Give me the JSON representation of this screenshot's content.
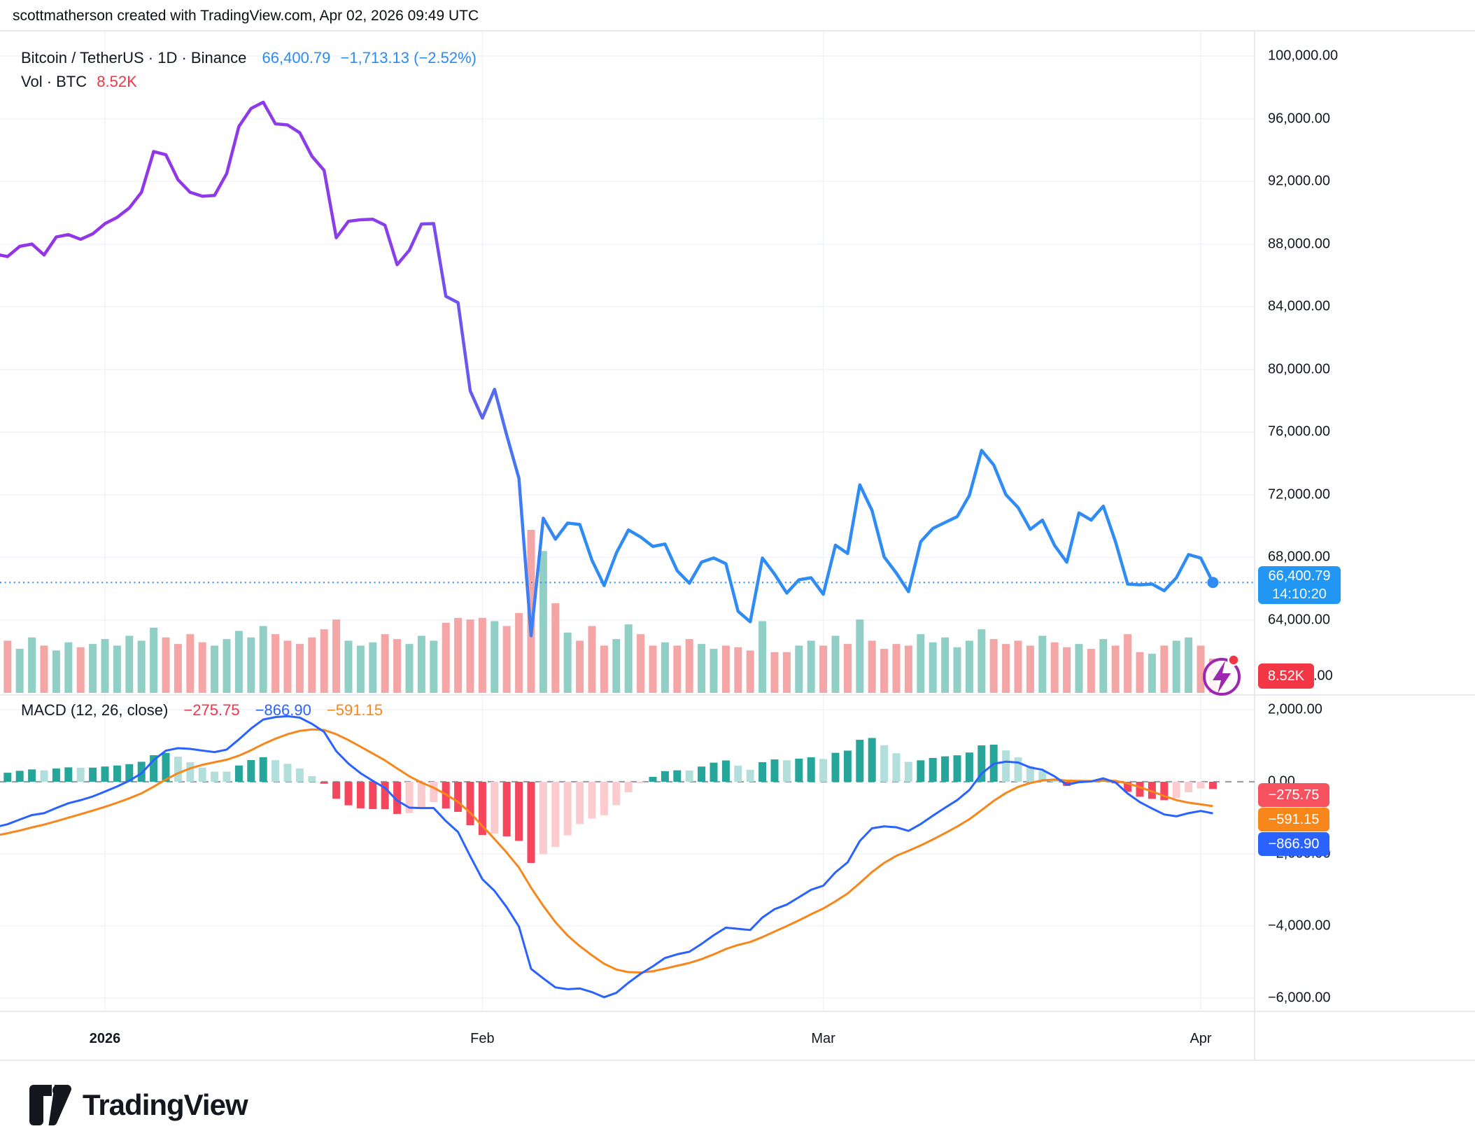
{
  "header": {
    "attribution": "scottmatherson created with TradingView.com, Apr 02, 2026 09:49 UTC"
  },
  "symbol_legend": {
    "title": "Bitcoin / TetherUS · 1D · Binance",
    "price": "66,400.79",
    "change": "−1,713.13 (−2.52%)"
  },
  "volume_legend": {
    "label": "Vol · BTC",
    "value": "8.52K"
  },
  "macd_legend": {
    "label": "MACD (12, 26, close)",
    "hist": "−275.75",
    "macd": "−866.90",
    "signal": "−591.15"
  },
  "price_chip": {
    "price": "66,400.79",
    "time": "14:10:20"
  },
  "volume_chip": {
    "value": "8.52K"
  },
  "macd_chips": {
    "hist": "−275.75",
    "signal": "−591.15",
    "macd": "−866.90"
  },
  "axis": {
    "price_labels": [
      "100,000.00",
      "96,000.00",
      "92,000.00",
      "88,000.00",
      "84,000.00",
      "80,000.00",
      "76,000.00",
      "72,000.00",
      "68,000.00",
      "64,000.00"
    ],
    "price_values": [
      100000,
      96000,
      92000,
      88000,
      84000,
      80000,
      76000,
      72000,
      68000,
      64000
    ],
    "macd_labels": [
      "2,000.00",
      "0.00",
      "−2,000.00",
      "−4,000.00",
      "−6,000.00"
    ],
    "macd_values": [
      2000,
      0,
      -2000,
      -4000,
      -6000
    ],
    "volume_axis_peek": ".00",
    "time_labels": [
      "2026",
      "Feb",
      "Mar",
      "Apr"
    ]
  },
  "logo": {
    "text": "TradingView"
  },
  "colors": {
    "line_purple": "#9632e7",
    "line_blue": "#2f8cf5",
    "chip_blue": "#2196f3",
    "red": "#f23645",
    "vol_up": "#90cfc6",
    "vol_down": "#f4a6a6",
    "macd_pos_strong": "#26a69a",
    "macd_pos_weak": "#b2dfdb",
    "macd_neg_strong": "#f6465d",
    "macd_neg_weak": "#fccbcd",
    "macd_line": "#2962ff",
    "signal_line": "#f7861b",
    "grid": "#f0f3fa",
    "border": "#e0e3eb",
    "zero_dash": "#9b9ea6",
    "icon_purple": "#9c27b0"
  },
  "chart_data": {
    "type": "line",
    "description": "BTC/USDT 1D close line with volume and MACD(12,26,9) panel; daily points from late Dec 2025 through Apr 2 2026",
    "days_before_jan1": 9,
    "last_price": 66400.79,
    "last_time": "14:10:20",
    "price_ylim": [
      62000,
      101500
    ],
    "macd_ylim": [
      -6500,
      2300
    ],
    "macd_current": {
      "hist": -275.75,
      "macd": -866.9,
      "signal": -591.15
    },
    "volume_current_label": "8.52K",
    "price": {
      "values": [
        87350,
        87200,
        87850,
        88000,
        87300,
        88450,
        88600,
        88300,
        88650,
        89300,
        89700,
        90300,
        91300,
        93900,
        93700,
        92100,
        91300,
        91050,
        91100,
        92500,
        95500,
        96650,
        97050,
        95670,
        95600,
        95100,
        93600,
        92700,
        88400,
        89450,
        89550,
        89580,
        89200,
        86680,
        87600,
        89280,
        89300,
        84660,
        84260,
        78630,
        76890,
        78725,
        75800,
        73050,
        63000,
        70500,
        69160,
        70190,
        70100,
        67820,
        66200,
        68270,
        69750,
        69300,
        68700,
        68850,
        67150,
        66350,
        67700,
        67960,
        67600,
        64560,
        63890,
        67960,
        66930,
        65720,
        66570,
        66700,
        65650,
        68780,
        68250,
        72630,
        71000,
        68030,
        67000,
        65810,
        69000,
        69850,
        70230,
        70600,
        71960,
        74830,
        73900,
        72000,
        71180,
        69790,
        70380,
        68760,
        67690,
        70840,
        70380,
        71270,
        69000,
        66300,
        66250,
        66300,
        65870,
        66700,
        68180,
        67960,
        66400.79
      ]
    },
    "volume_rel": [
      0.3,
      0.32,
      0.27,
      0.34,
      0.29,
      0.26,
      0.31,
      0.28,
      0.3,
      0.33,
      0.29,
      0.35,
      0.32,
      0.4,
      0.34,
      0.3,
      0.36,
      0.31,
      0.29,
      0.33,
      0.38,
      0.34,
      0.41,
      0.36,
      0.32,
      0.3,
      0.34,
      0.39,
      0.45,
      0.32,
      0.29,
      0.31,
      0.36,
      0.33,
      0.3,
      0.35,
      0.32,
      0.43,
      0.46,
      0.45,
      0.46,
      0.44,
      0.41,
      0.49,
      1.0,
      0.87,
      0.55,
      0.37,
      0.32,
      0.41,
      0.29,
      0.33,
      0.42,
      0.36,
      0.29,
      0.31,
      0.29,
      0.33,
      0.3,
      0.27,
      0.29,
      0.28,
      0.26,
      0.44,
      0.25,
      0.25,
      0.29,
      0.32,
      0.29,
      0.35,
      0.3,
      0.45,
      0.32,
      0.27,
      0.3,
      0.29,
      0.36,
      0.31,
      0.34,
      0.28,
      0.32,
      0.39,
      0.33,
      0.3,
      0.32,
      0.29,
      0.35,
      0.31,
      0.28,
      0.3,
      0.27,
      0.33,
      0.29,
      0.36,
      0.25,
      0.24,
      0.29,
      0.32,
      0.34,
      0.29,
      0.21
    ]
  }
}
